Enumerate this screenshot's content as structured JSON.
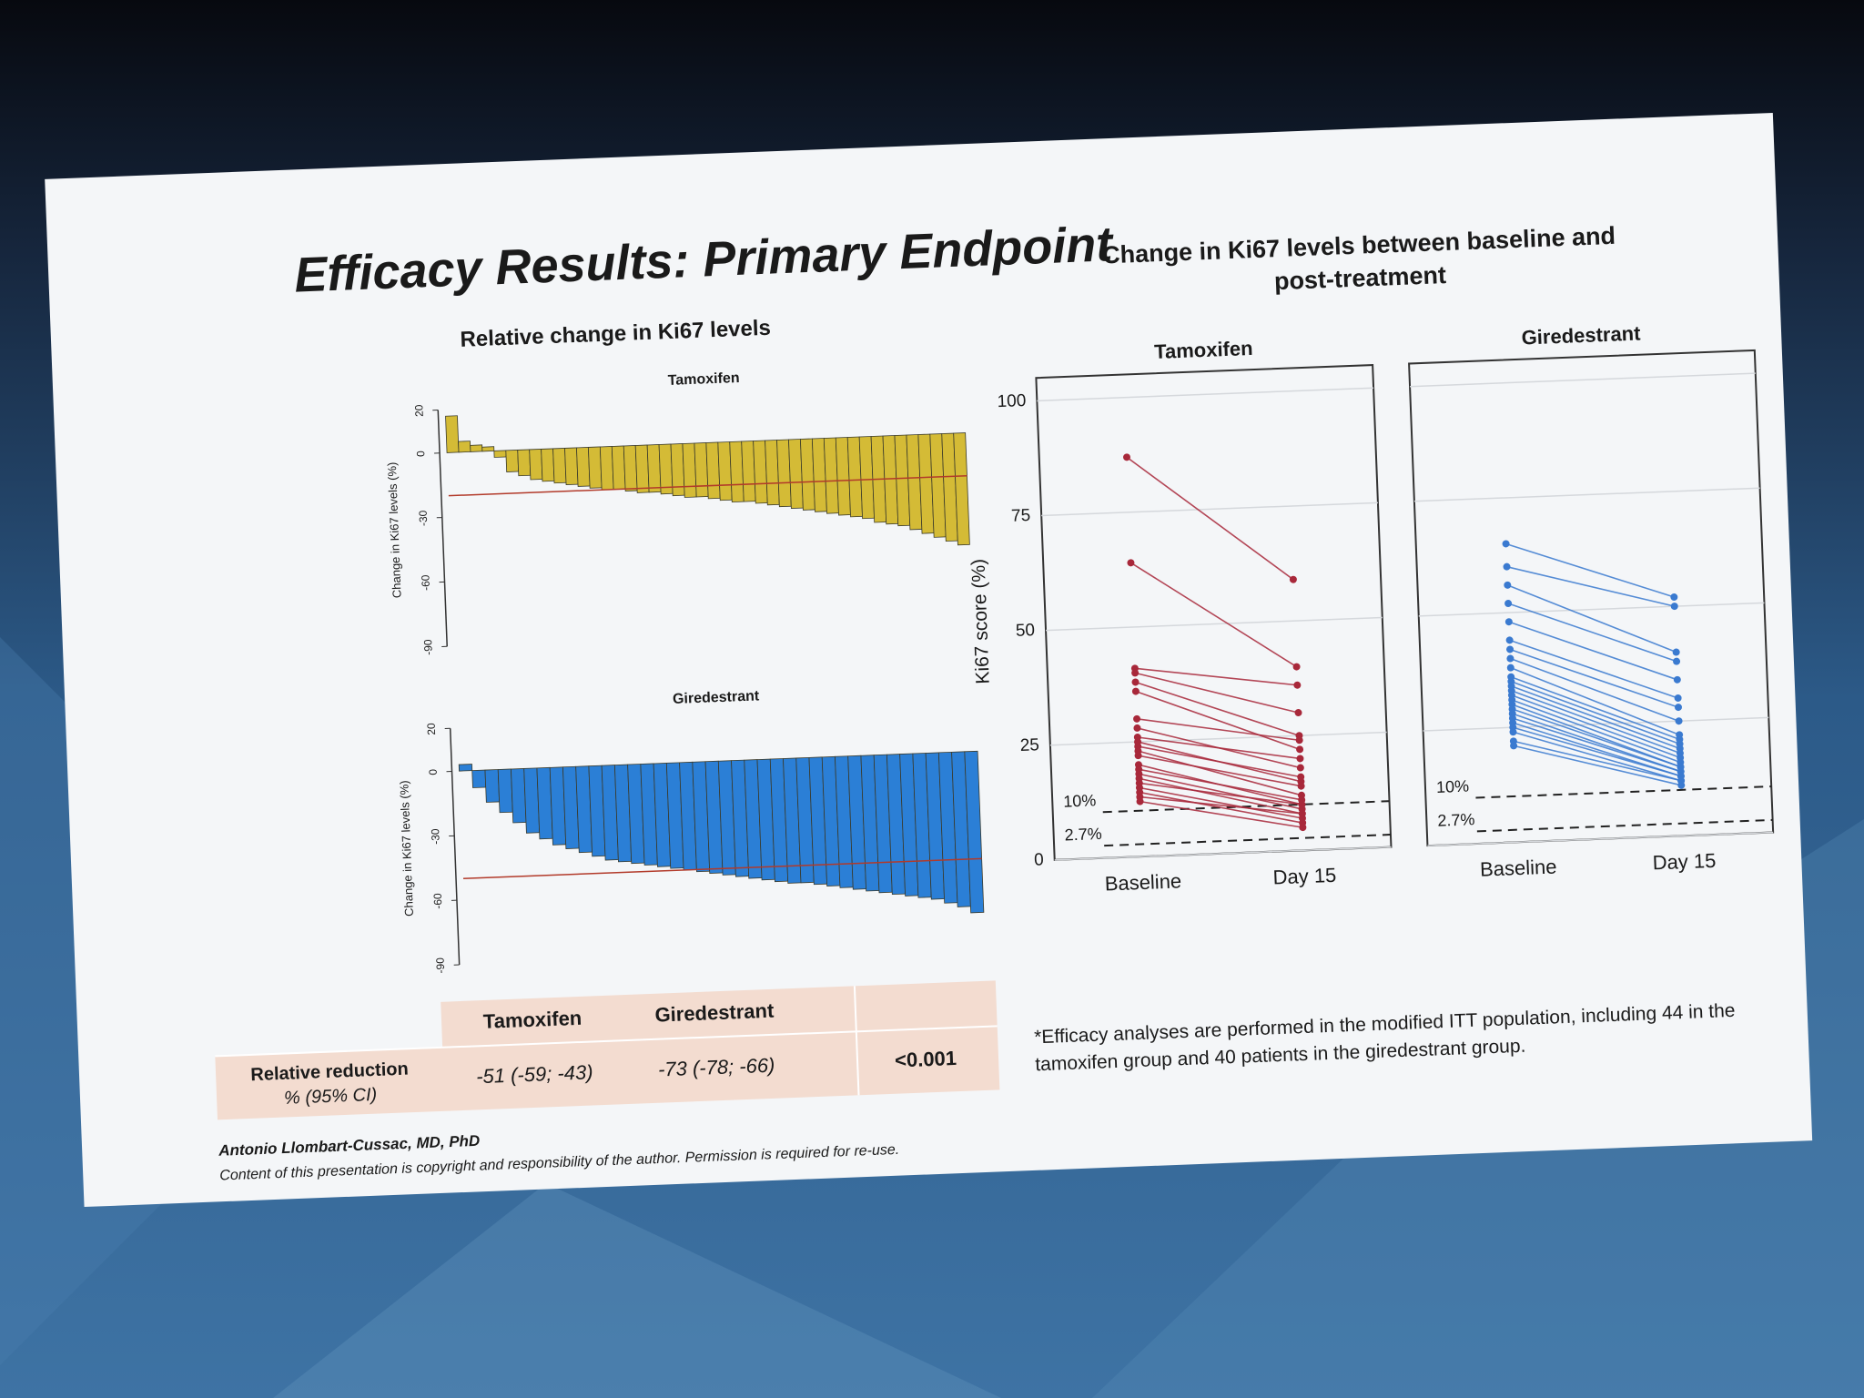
{
  "slide": {
    "title": "Efficacy Results: Primary Endpoint",
    "left_title": "Relative change in Ki67 levels",
    "right_title": [
      "Change in Ki67 levels between baseline and",
      "post-treatment"
    ],
    "footnote": [
      "*Efficacy analyses are performed in the modified ITT population, including 44 in the",
      "tamoxifen group and 40 patients in the giredestrant group."
    ],
    "author": "Antonio Llombart-Cussac, MD, PhD",
    "copyright": "Content of this presentation is copyright and responsibility of the author. Permission is required for re-use."
  },
  "table": {
    "header": [
      "Tamoxifen",
      "Giredestrant"
    ],
    "row_label": [
      "Relative reduction",
      "% (95% CI)"
    ],
    "cells": [
      "-51 (-59; -43)",
      "-73 (-78; -66)",
      "<0.001"
    ]
  },
  "chart_data": [
    {
      "type": "waterfall",
      "title": "Tamoxifen",
      "y_label": "Change in Ki67 levels (%)",
      "color": "#d4bb36",
      "ylim": [
        -90,
        20
      ],
      "yticks": [
        20,
        0,
        -30,
        -60,
        -90
      ],
      "reference_line": -20,
      "values": [
        17,
        5,
        3,
        2,
        -3,
        -10,
        -12,
        -14,
        -15,
        -16,
        -17,
        -18,
        -19,
        -20,
        -20,
        -21,
        -22,
        -22,
        -23,
        -24,
        -25,
        -25,
        -26,
        -27,
        -28,
        -28,
        -29,
        -30,
        -31,
        -32,
        -33,
        -34,
        -35,
        -36,
        -37,
        -38,
        -40,
        -41,
        -42,
        -44,
        -46,
        -48,
        -50,
        -52
      ]
    },
    {
      "type": "waterfall",
      "title": "Giredestrant",
      "y_label": "Change in Ki67 levels (%)",
      "color": "#2b7fd6",
      "ylim": [
        -90,
        20
      ],
      "yticks": [
        20,
        0,
        -30,
        -60,
        -90
      ],
      "reference_line": -50,
      "values": [
        3,
        -8,
        -15,
        -20,
        -25,
        -30,
        -33,
        -36,
        -38,
        -40,
        -42,
        -44,
        -45,
        -46,
        -47,
        -48,
        -49,
        -50,
        -51,
        -52,
        -53,
        -54,
        -55,
        -56,
        -57,
        -58,
        -58,
        -59,
        -60,
        -61,
        -62,
        -63,
        -64,
        -65,
        -66,
        -67,
        -68,
        -70,
        -72,
        -75
      ]
    },
    {
      "type": "paired",
      "title": "Tamoxifen",
      "y_label": "Ki67 score (%)",
      "color": "#a8283a",
      "categories": [
        "Baseline",
        "Day 15"
      ],
      "ylim": [
        0,
        105
      ],
      "yticks": [
        0,
        25,
        50,
        75,
        100
      ],
      "thresholds": [
        {
          "value": 10,
          "label": "10%"
        },
        {
          "value": 2.7,
          "label": "2.7%"
        }
      ],
      "baseline": [
        87,
        64,
        41,
        40,
        38,
        36,
        30,
        28,
        26,
        25,
        24,
        23,
        22,
        20,
        19,
        18,
        17,
        16,
        15,
        14,
        13,
        12
      ],
      "day15": [
        59,
        40,
        36,
        30,
        25,
        22,
        24,
        18,
        20,
        15,
        16,
        12,
        14,
        10,
        11,
        9,
        8,
        10,
        7,
        6,
        8,
        5
      ]
    },
    {
      "type": "paired",
      "title": "Giredestrant",
      "color": "#3a7ad0",
      "categories": [
        "Baseline",
        "Day 15"
      ],
      "ylim": [
        0,
        105
      ],
      "yticks": [
        0,
        25,
        50,
        75,
        100
      ],
      "thresholds": [
        {
          "value": 10,
          "label": "10%"
        },
        {
          "value": 2.7,
          "label": "2.7%"
        }
      ],
      "baseline": [
        65,
        60,
        56,
        52,
        48,
        44,
        42,
        40,
        38,
        36,
        35,
        34,
        33,
        32,
        31,
        30,
        29,
        28,
        27,
        26,
        25,
        24,
        22,
        21
      ],
      "day15": [
        52,
        50,
        40,
        38,
        34,
        30,
        28,
        25,
        22,
        21,
        20,
        19,
        18,
        17,
        16,
        15,
        15,
        14,
        14,
        13,
        13,
        12,
        12,
        11
      ]
    }
  ]
}
